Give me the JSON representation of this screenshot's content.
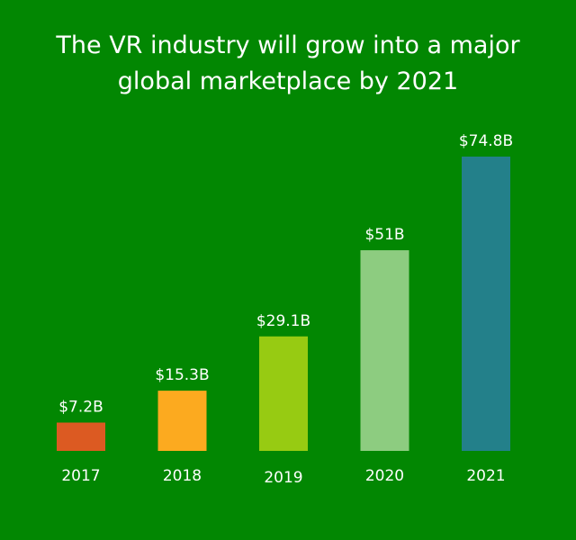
{
  "chart_data": {
    "type": "bar",
    "title_lines": [
      "The VR industry will grow into a major",
      "global marketplace by 2021"
    ],
    "categories": [
      "2017",
      "2018",
      "2019",
      "2020",
      "2021"
    ],
    "values": [
      7.2,
      15.3,
      29.1,
      51,
      74.8
    ],
    "data_labels": [
      "$7.2B",
      "$15.3B",
      "$29.1B",
      "$51B",
      "$74.8B"
    ],
    "unit": "billion USD",
    "colors": [
      "#dc5a22",
      "#fcaa1f",
      "#97cb12",
      "#8dcc80",
      "#23808a"
    ],
    "background": "#028702",
    "ylim": [
      0,
      74.8
    ],
    "grid": false,
    "legend": "none"
  }
}
